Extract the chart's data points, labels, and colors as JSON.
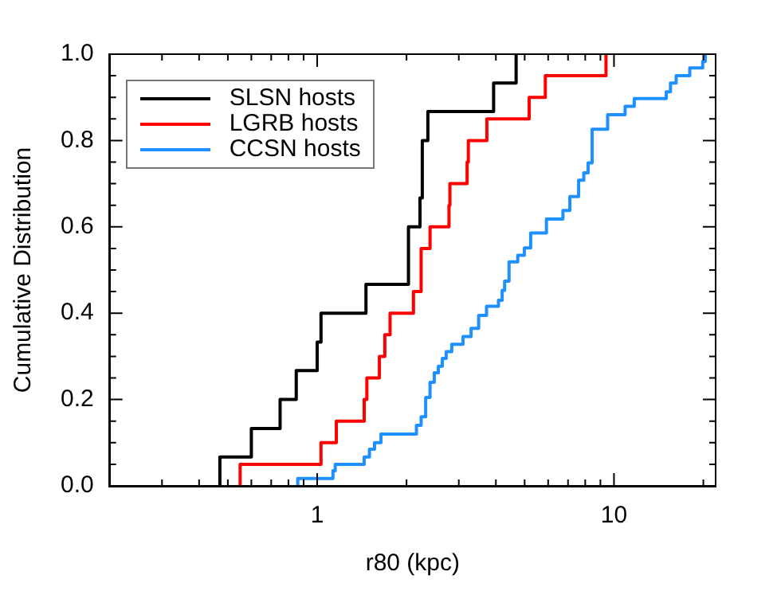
{
  "chart_data": {
    "type": "step",
    "xlabel": "r80 (kpc)",
    "ylabel": "Cumulative Distribution",
    "log": "x",
    "legend": "top left",
    "grid": false,
    "xlim": [
      0.2,
      22
    ],
    "ylim": [
      0,
      1
    ],
    "xticks": [
      {
        "value": 0.2,
        "label": null
      },
      {
        "value": 0.3,
        "label": null
      },
      {
        "value": 0.4,
        "label": null
      },
      {
        "value": 0.5,
        "label": null
      },
      {
        "value": 0.6,
        "label": null
      },
      {
        "value": 0.7,
        "label": null
      },
      {
        "value": 0.8,
        "label": null
      },
      {
        "value": 0.9,
        "label": null
      },
      1,
      {
        "value": 2,
        "label": null
      },
      {
        "value": 3,
        "label": null
      },
      {
        "value": 4,
        "label": null
      },
      {
        "value": 5,
        "label": null
      },
      {
        "value": 6,
        "label": null
      },
      {
        "value": 7,
        "label": null
      },
      {
        "value": 8,
        "label": null
      },
      {
        "value": 9,
        "label": null
      },
      10,
      {
        "value": 20,
        "label": null
      }
    ],
    "yticks": [
      {
        "value": 0,
        "label": "0.0"
      },
      {
        "value": 0.05,
        "label": null
      },
      {
        "value": 0.1,
        "label": null
      },
      {
        "value": 0.15,
        "label": null
      },
      {
        "value": 0.2,
        "label": "0.2"
      },
      {
        "value": 0.25,
        "label": null
      },
      {
        "value": 0.3,
        "label": null
      },
      {
        "value": 0.35,
        "label": null
      },
      {
        "value": 0.4,
        "label": "0.4"
      },
      {
        "value": 0.45,
        "label": null
      },
      {
        "value": 0.5,
        "label": null
      },
      {
        "value": 0.55,
        "label": null
      },
      {
        "value": 0.6,
        "label": "0.6"
      },
      {
        "value": 0.65,
        "label": null
      },
      {
        "value": 0.7,
        "label": null
      },
      {
        "value": 0.75,
        "label": null
      },
      {
        "value": 0.8,
        "label": "0.8"
      },
      {
        "value": 0.85,
        "label": null
      },
      {
        "value": 0.9,
        "label": null
      },
      {
        "value": 0.95,
        "label": null
      },
      {
        "value": 1,
        "label": "1.0"
      }
    ],
    "series": [
      {
        "name": "SLSN hosts",
        "color": "#000000",
        "x": [
          0.47,
          0.47,
          0.6,
          0.75,
          0.85,
          1.0,
          1.03,
          1.46,
          2.03,
          2.22,
          2.26,
          2.36,
          3.93,
          4.68
        ],
        "values": [
          0,
          0.067,
          0.133,
          0.2,
          0.267,
          0.333,
          0.4,
          0.467,
          0.6,
          0.667,
          0.8,
          0.867,
          0.933,
          1.0
        ]
      },
      {
        "name": "LGRB hosts",
        "color": "#ff0000",
        "x": [
          0.55,
          0.55,
          1.03,
          1.16,
          1.44,
          1.47,
          1.62,
          1.69,
          1.76,
          2.11,
          2.24,
          2.4,
          2.78,
          2.8,
          3.2,
          3.23,
          3.73,
          5.18,
          5.87,
          9.4
        ],
        "values": [
          0,
          0.05,
          0.1,
          0.15,
          0.2,
          0.25,
          0.3,
          0.35,
          0.4,
          0.45,
          0.55,
          0.6,
          0.65,
          0.7,
          0.75,
          0.8,
          0.85,
          0.9,
          0.95,
          1.0
        ]
      },
      {
        "name": "CCSN hosts",
        "color": "#1e90ff",
        "x": [
          0.86,
          0.86,
          1.13,
          1.15,
          1.44,
          1.5,
          1.56,
          1.64,
          2.16,
          2.24,
          2.32,
          2.4,
          2.48,
          2.56,
          2.64,
          2.72,
          2.84,
          3.1,
          3.3,
          3.5,
          3.72,
          4.08,
          4.2,
          4.28,
          4.43,
          4.74,
          4.99,
          5.24,
          5.92,
          6.73,
          7.1,
          7.6,
          7.91,
          8.18,
          8.44,
          9.52,
          10.9,
          11.7,
          15.0,
          15.5,
          16.2,
          18.0,
          19.9,
          20.3
        ],
        "values": [
          0,
          0.017,
          0.035,
          0.05,
          0.067,
          0.085,
          0.1,
          0.12,
          0.14,
          0.16,
          0.205,
          0.24,
          0.262,
          0.277,
          0.295,
          0.311,
          0.328,
          0.346,
          0.365,
          0.395,
          0.416,
          0.43,
          0.453,
          0.474,
          0.519,
          0.534,
          0.551,
          0.586,
          0.618,
          0.638,
          0.67,
          0.708,
          0.725,
          0.748,
          0.826,
          0.86,
          0.879,
          0.897,
          0.913,
          0.933,
          0.95,
          0.968,
          0.983,
          1.0
        ]
      }
    ]
  }
}
